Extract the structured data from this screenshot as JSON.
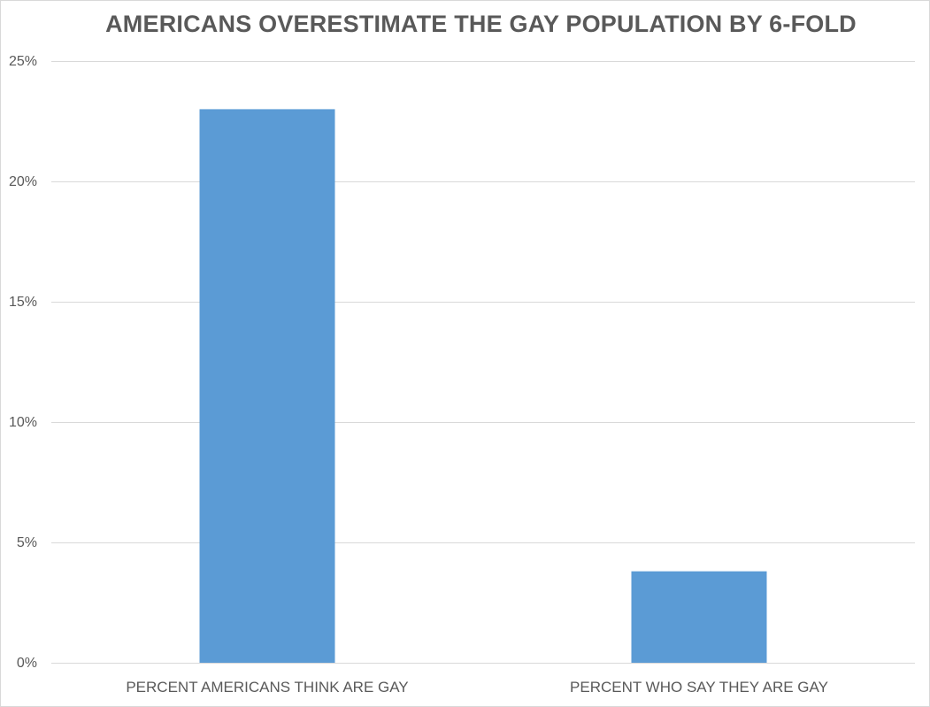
{
  "chart_data": {
    "type": "bar",
    "title": "AMERICANS OVERESTIMATE THE GAY POPULATION BY 6-FOLD",
    "xlabel": "",
    "ylabel": "",
    "categories": [
      "PERCENT AMERICANS THINK ARE GAY",
      "PERCENT WHO SAY THEY ARE GAY"
    ],
    "values": [
      23,
      3.8
    ],
    "ylim": [
      0,
      25
    ],
    "yticks": [
      0,
      5,
      10,
      15,
      20,
      25
    ],
    "ytick_labels": [
      "0%",
      "5%",
      "10%",
      "15%",
      "20%",
      "25%"
    ],
    "grid": true,
    "legend": "none",
    "bar_color": "#5b9bd5",
    "grid_color": "#d9d9d9",
    "text_color": "#595959"
  }
}
